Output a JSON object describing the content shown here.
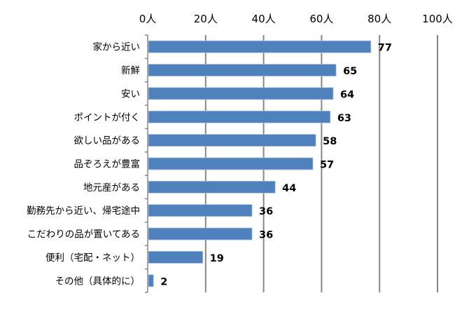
{
  "chart_data": {
    "type": "bar",
    "orientation": "horizontal",
    "categories": [
      "家から近い",
      "新鮮",
      "安い",
      "ポイントが付く",
      "欲しい品がある",
      "品ぞろえが豊富",
      "地元産がある",
      "勤務先から近い、帰宅途中",
      "こだわりの品が置いてある",
      "便利（宅配・ネット）",
      "その他（具体的に）"
    ],
    "values": [
      77,
      65,
      64,
      63,
      58,
      57,
      44,
      36,
      36,
      19,
      2
    ],
    "xlim": [
      0,
      100
    ],
    "x_ticks": [
      "0人",
      "20人",
      "40人",
      "60人",
      "80人",
      "100人"
    ],
    "x_tick_values": [
      0,
      20,
      40,
      60,
      80,
      100
    ],
    "x_axis_position": "top",
    "grid": true,
    "data_labels": true,
    "bar_color": "#4F81BD",
    "grid_color": "#868686"
  }
}
